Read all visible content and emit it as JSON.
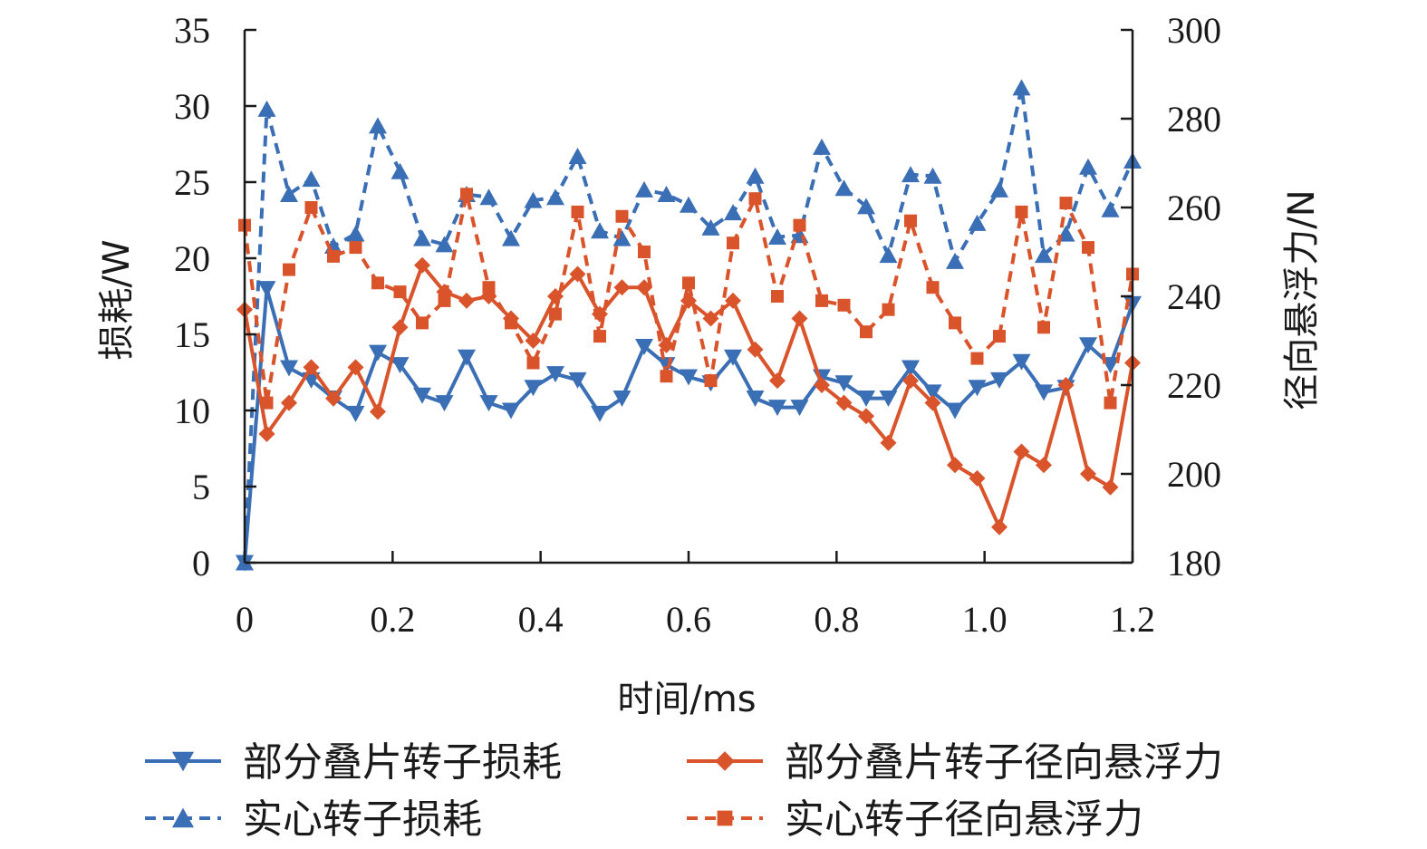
{
  "chart_data": {
    "type": "line",
    "xlabel": "时间/ms",
    "ylabel_left": "损耗/W",
    "ylabel_right": "径向悬浮力/N",
    "xlim": [
      0,
      1.2
    ],
    "ylim_left": [
      0,
      35
    ],
    "ylim_right": [
      180,
      300
    ],
    "x_ticks": [
      "0",
      "0.2",
      "0.4",
      "0.6",
      "0.8",
      "1.0",
      "1.2"
    ],
    "y_left_ticks": [
      "0",
      "5",
      "10",
      "15",
      "20",
      "25",
      "30",
      "35"
    ],
    "y_right_ticks": [
      "180",
      "200",
      "220",
      "240",
      "260",
      "280",
      "300"
    ],
    "grid": false,
    "legend_position": "bottom",
    "x": [
      0,
      0.03,
      0.06,
      0.09,
      0.12,
      0.15,
      0.18,
      0.21,
      0.24,
      0.27,
      0.3,
      0.33,
      0.36,
      0.39,
      0.42,
      0.45,
      0.48,
      0.51,
      0.54,
      0.57,
      0.6,
      0.63,
      0.66,
      0.69,
      0.72,
      0.75,
      0.78,
      0.81,
      0.84,
      0.87,
      0.9,
      0.93,
      0.96,
      0.99,
      1.02,
      1.05,
      1.08,
      1.11,
      1.14,
      1.17,
      1.2
    ],
    "series": [
      {
        "name": "部分叠片转子损耗",
        "axis": "left",
        "color": "#3a6fb5",
        "line": "solid",
        "marker": "triangle-down",
        "values": [
          0,
          18,
          12.8,
          12,
          10.8,
          9.8,
          13.8,
          13,
          11,
          10.5,
          13.5,
          10.5,
          10,
          11.5,
          12.4,
          12,
          9.8,
          10.8,
          14.2,
          13,
          12.2,
          11.8,
          13.5,
          10.8,
          10.2,
          10.2,
          12.2,
          11.8,
          10.8,
          10.8,
          12.8,
          11.2,
          10,
          11.5,
          12,
          13.2,
          11.2,
          11.5,
          14.3,
          13,
          17
        ]
      },
      {
        "name": "实心转子损耗",
        "axis": "left",
        "color": "#3a6fb5",
        "line": "dashed",
        "marker": "triangle-up",
        "values": [
          0,
          29.8,
          24.2,
          25.2,
          20.8,
          21.6,
          28.7,
          25.7,
          21.3,
          20.9,
          24.2,
          24,
          21.3,
          23.8,
          24,
          26.7,
          21.8,
          21.3,
          24.5,
          24.2,
          23.5,
          22,
          23,
          25.4,
          21.4,
          21.5,
          27.3,
          24.6,
          23.4,
          20.2,
          25.5,
          25.4,
          19.8,
          22.3,
          24.5,
          31.2,
          20.2,
          21.6,
          26,
          23.2,
          26.4
        ]
      },
      {
        "name": "部分叠片转子径向悬浮力",
        "axis": "right",
        "color": "#d9532b",
        "line": "solid",
        "marker": "diamond",
        "values": [
          237,
          209,
          216,
          224,
          217,
          224,
          214,
          233,
          247,
          241,
          239,
          240,
          235,
          230,
          240,
          245,
          236,
          242,
          242,
          229,
          239,
          235,
          239,
          228,
          221,
          235,
          220,
          216,
          213,
          207,
          221,
          216,
          202,
          199,
          188,
          205,
          202,
          220,
          200,
          197,
          225
        ]
      },
      {
        "name": "实心转子径向悬浮力",
        "axis": "right",
        "color": "#d9532b",
        "line": "dashed",
        "marker": "square",
        "values": [
          256,
          216,
          246,
          260,
          249,
          251,
          243,
          241,
          234,
          239,
          263,
          242,
          234,
          225,
          236,
          259,
          231,
          258,
          250,
          222,
          243,
          221,
          252,
          262,
          240,
          256,
          239,
          238,
          232,
          237,
          257,
          242,
          234,
          226,
          231,
          259,
          233,
          261,
          251,
          216,
          245
        ]
      }
    ]
  }
}
